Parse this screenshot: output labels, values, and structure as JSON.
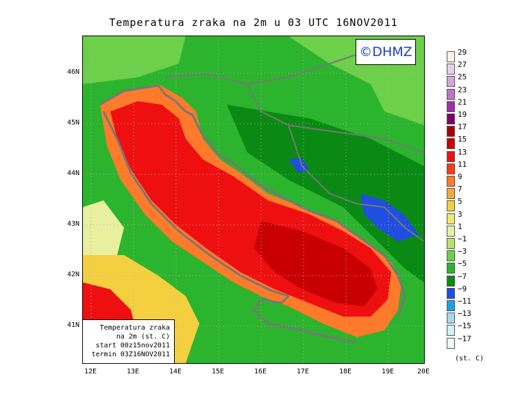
{
  "title": "Temperatura zraka na 2m u 03 UTC 16NOV2011",
  "copyright": "©DHMZ",
  "info": [
    "Temperatura zraka",
    "na 2m (st. C)",
    "start 00z15nov2011",
    "termin 03Z16NOV2011"
  ],
  "y_axis_labels": [
    "46N",
    "45N",
    "44N",
    "43N",
    "42N",
    "41N"
  ],
  "x_axis_labels": [
    "12E",
    "13E",
    "14E",
    "15E",
    "16E",
    "17E",
    "18E",
    "19E",
    "20E"
  ],
  "legend_labels": [
    "29",
    "27",
    "25",
    "23",
    "21",
    "19",
    "17",
    "15",
    "13",
    "11",
    "9",
    "7",
    "5",
    "3",
    "1",
    "−1",
    "−3",
    "−5",
    "−7",
    "−9",
    "−11",
    "−13",
    "−15",
    "−17"
  ],
  "legend_colors": [
    "#fff0e6",
    "#e6d0e8",
    "#d8a6d8",
    "#c072c8",
    "#9a30a8",
    "#7a0070",
    "#a80000",
    "#c80000",
    "#ee1010",
    "#ff3a1a",
    "#ff7a2a",
    "#f8a838",
    "#f4d040",
    "#f0e870",
    "#e8f0a0",
    "#b8e066",
    "#6cd04a",
    "#2cb42e",
    "#0a8a14",
    "#1f4ee0",
    "#1aa0e8",
    "#a8d8ec",
    "#d4f0f4",
    "#ecfaff"
  ],
  "legend_unit": "(st. C)"
}
